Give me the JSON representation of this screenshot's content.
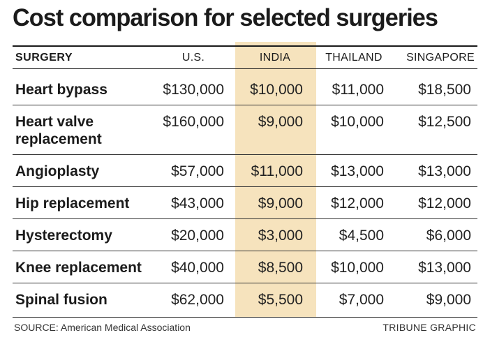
{
  "chart_data": {
    "type": "table",
    "title": "Cost comparison for selected surgeries",
    "row_header": "SURGERY",
    "columns": [
      "U.S.",
      "INDIA",
      "THAILAND",
      "SINGAPORE"
    ],
    "highlighted_column": "INDIA",
    "rows": [
      {
        "surgery": [
          "Heart bypass"
        ],
        "values": [
          "$130,000",
          "$10,000",
          "$11,000",
          "$18,500"
        ]
      },
      {
        "surgery": [
          "Heart valve",
          "replacement"
        ],
        "values": [
          "$160,000",
          "$9,000",
          "$10,000",
          "$12,500"
        ]
      },
      {
        "surgery": [
          "Angioplasty"
        ],
        "values": [
          "$57,000",
          "$11,000",
          "$13,000",
          "$13,000"
        ]
      },
      {
        "surgery": [
          "Hip replacement"
        ],
        "values": [
          "$43,000",
          "$9,000",
          "$12,000",
          "$12,000"
        ]
      },
      {
        "surgery": [
          "Hysterectomy"
        ],
        "values": [
          "$20,000",
          "$3,000",
          "$4,500",
          "$6,000"
        ]
      },
      {
        "surgery": [
          "Knee replacement"
        ],
        "values": [
          "$40,000",
          "$8,500",
          "$10,000",
          "$13,000"
        ]
      },
      {
        "surgery": [
          "Spinal fusion"
        ],
        "values": [
          "$62,000",
          "$5,500",
          "$7,000",
          "$9,000"
        ]
      }
    ],
    "source": "SOURCE: American Medical Association",
    "credit": "TRIBUNE GRAPHIC",
    "colors": {
      "highlight": "#f6e3bd",
      "text": "#1b1b1b",
      "rule": "#1b1b1b"
    }
  }
}
